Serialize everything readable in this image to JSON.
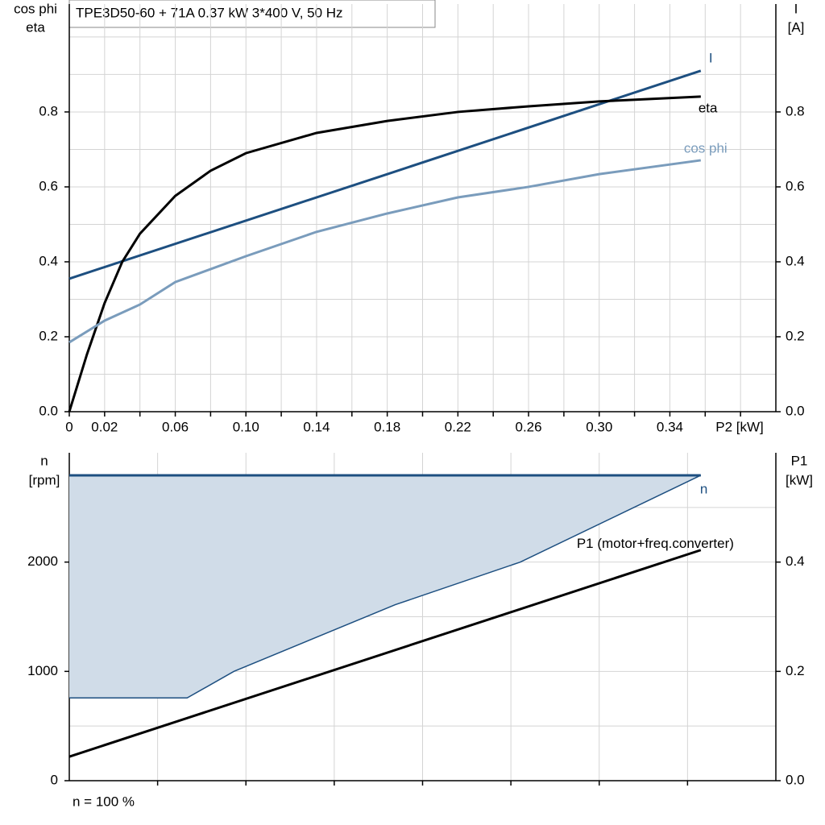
{
  "chart_data": [
    {
      "type": "line",
      "title": "TPE3D50-60 + 71A   0.37 kW   3*400 V, 50 Hz",
      "ylabel": [
        "cos phi",
        "eta"
      ],
      "y2label": [
        "I",
        "[A]"
      ],
      "xlabel": "P2 [kW]",
      "xlim": [
        0,
        0.4
      ],
      "xticks": [
        0,
        0.02,
        0.06,
        {
          "value": 0.1,
          "label": "0.10"
        },
        0.14,
        0.18,
        0.22,
        0.26,
        {
          "value": 0.3,
          "label": "0.30"
        },
        0.34
      ],
      "xminor": [
        0.04,
        0.08,
        0.12,
        0.16,
        0.2,
        0.24,
        0.28,
        0.32,
        0.36,
        0.38
      ],
      "ylim": [
        0,
        1.088
      ],
      "yticks": [
        {
          "value": 0,
          "label": "0.0"
        },
        0.2,
        0.4,
        0.6,
        0.8
      ],
      "yminor": [
        0.1,
        0.3,
        0.5,
        0.7,
        0.9,
        1.0
      ],
      "y2lim": [
        0,
        1.088
      ],
      "y2ticks": [
        {
          "value": 0,
          "label": "0.0"
        },
        0.2,
        0.4,
        0.6,
        0.8
      ],
      "grid": true,
      "series": [
        {
          "name": "I",
          "color": "#1d4f80",
          "axis": "y2",
          "x": [
            0,
            0.18,
            0.3575
          ],
          "values": [
            0.355,
            0.634,
            0.91
          ]
        },
        {
          "name": "eta",
          "color": "#000000",
          "x": [
            0,
            0.01,
            0.02,
            0.03,
            0.04,
            0.06,
            0.08,
            0.1,
            0.14,
            0.18,
            0.22,
            0.26,
            0.3,
            0.3575
          ],
          "values": [
            0,
            0.153,
            0.29,
            0.4,
            0.475,
            0.576,
            0.643,
            0.69,
            0.744,
            0.776,
            0.8,
            0.815,
            0.828,
            0.841
          ]
        },
        {
          "name": "cos phi",
          "color": "#7a9cbc",
          "x": [
            0,
            0.02,
            0.04,
            0.06,
            0.1,
            0.14,
            0.18,
            0.22,
            0.26,
            0.3,
            0.3575
          ],
          "values": [
            0.185,
            0.243,
            0.286,
            0.346,
            0.415,
            0.48,
            0.529,
            0.572,
            0.6,
            0.634,
            0.671
          ]
        }
      ]
    },
    {
      "type": "area-line",
      "ylabel": [
        "n",
        "[rpm]"
      ],
      "y2label": [
        "P1",
        "[kW]"
      ],
      "note": "n = 100 %",
      "xlim": [
        0,
        0.4
      ],
      "xminor": [
        0.05,
        0.1,
        0.15,
        0.2,
        0.25,
        0.3,
        0.35
      ],
      "ylim": [
        0,
        3000
      ],
      "yticks": [
        0,
        1000,
        2000
      ],
      "yminor": [
        500,
        1500,
        2500
      ],
      "y2lim": [
        0,
        0.6
      ],
      "y2ticks": [
        {
          "value": 0,
          "label": "0.0"
        },
        0.2,
        0.4
      ],
      "grid": true,
      "fill": "#d0dce8",
      "series": [
        {
          "name": "n",
          "color": "#1d4f80",
          "x": [
            0,
            0.3575
          ],
          "values": [
            2794,
            2794
          ]
        },
        {
          "color": "#1d4f80",
          "x": [
            0,
            0.0667,
            0.0932,
            0.1845,
            0.2553,
            0.3575
          ],
          "values": [
            757,
            757,
            1000,
            1610,
            2000,
            2794
          ]
        },
        {
          "name": "P1 (motor+freq.converter)",
          "color": "#000000",
          "axis": "y2",
          "x": [
            0,
            0.3575
          ],
          "values": [
            0.044,
            0.422
          ]
        }
      ]
    }
  ]
}
